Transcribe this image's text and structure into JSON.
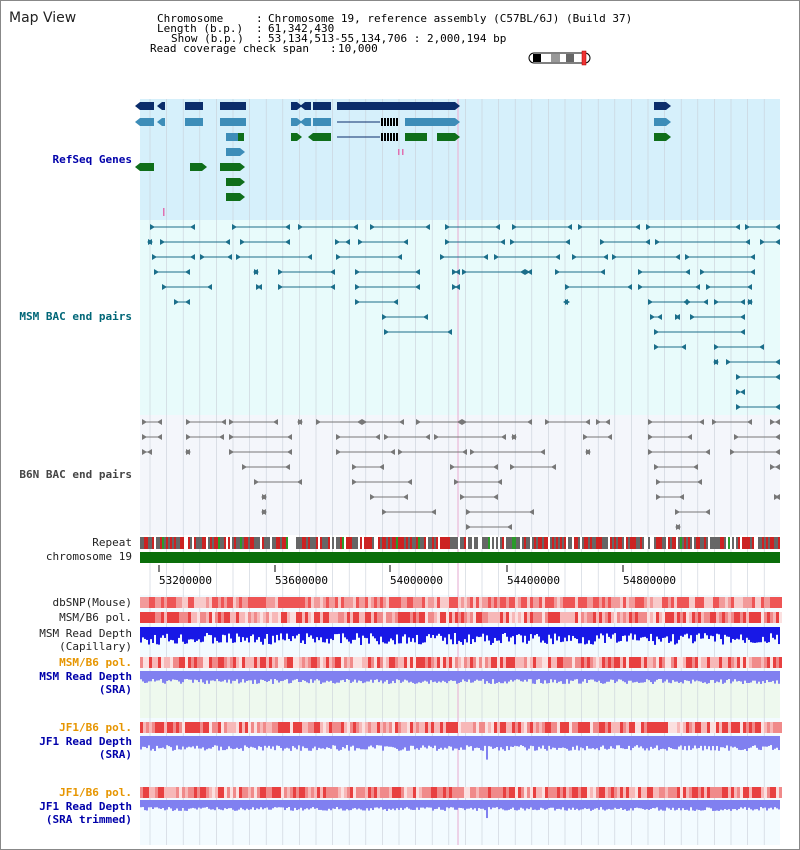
{
  "title": "Map View",
  "info": {
    "chromosome_key": "Chromosome",
    "chromosome_val": "Chromosome 19, reference assembly (C57BL/6J) (Build 37)",
    "length_key": "Length (b.p.)",
    "length_val": "61,342,430",
    "show_key": "Show (b.p.)",
    "show_val": "53,134,513-55,134,706 : 2,000,194 bp",
    "span_key": "Read coverage check span",
    "span_val": "10,000"
  },
  "tracks": {
    "refseq": "RefSeq Genes",
    "msm_bac": "MSM BAC end pairs",
    "b6n_bac": "B6N BAC end pairs",
    "repeat": "Repeat",
    "chromosome": "chromosome 19",
    "dbsnp": "dbSNP(Mouse)",
    "msm_pol": "MSM/B6 pol.",
    "msm_depth_cap_1": "MSM Read Depth",
    "msm_depth_cap_2": "(Capillary)",
    "msm_pol_sra": "MSM/B6 pol.",
    "msm_depth_sra_1": "MSM Read Depth",
    "msm_depth_sra_2": "(SRA)",
    "jf1_pol": "JF1/B6 pol.",
    "jf1_depth_1": "JF1 Read Depth",
    "jf1_depth_2": "(SRA)",
    "jf1_pol_t": "JF1/B6 pol.",
    "jf1_depth_t_1": "JF1 Read Depth",
    "jf1_depth_t_2": "(SRA trimmed)"
  },
  "axis": {
    "ticks": [
      "53200000",
      "53600000",
      "54000000",
      "54400000",
      "54800000"
    ]
  },
  "colors": {
    "refseq_bg": "#d6f0fb",
    "bac_bg": "#e8fbfb",
    "b6n_bg": "#f4f6fb",
    "gene_dark": "#0b2d6b",
    "gene_mid": "#3d8db8",
    "gene_green": "#0f6e1a",
    "bac_teal": "#1b6e8a",
    "b6n_gray": "#777777",
    "chrom_green": "#0a6e0a",
    "depth_blue": "#1818e6",
    "depth_light": "#8080f0"
  }
}
